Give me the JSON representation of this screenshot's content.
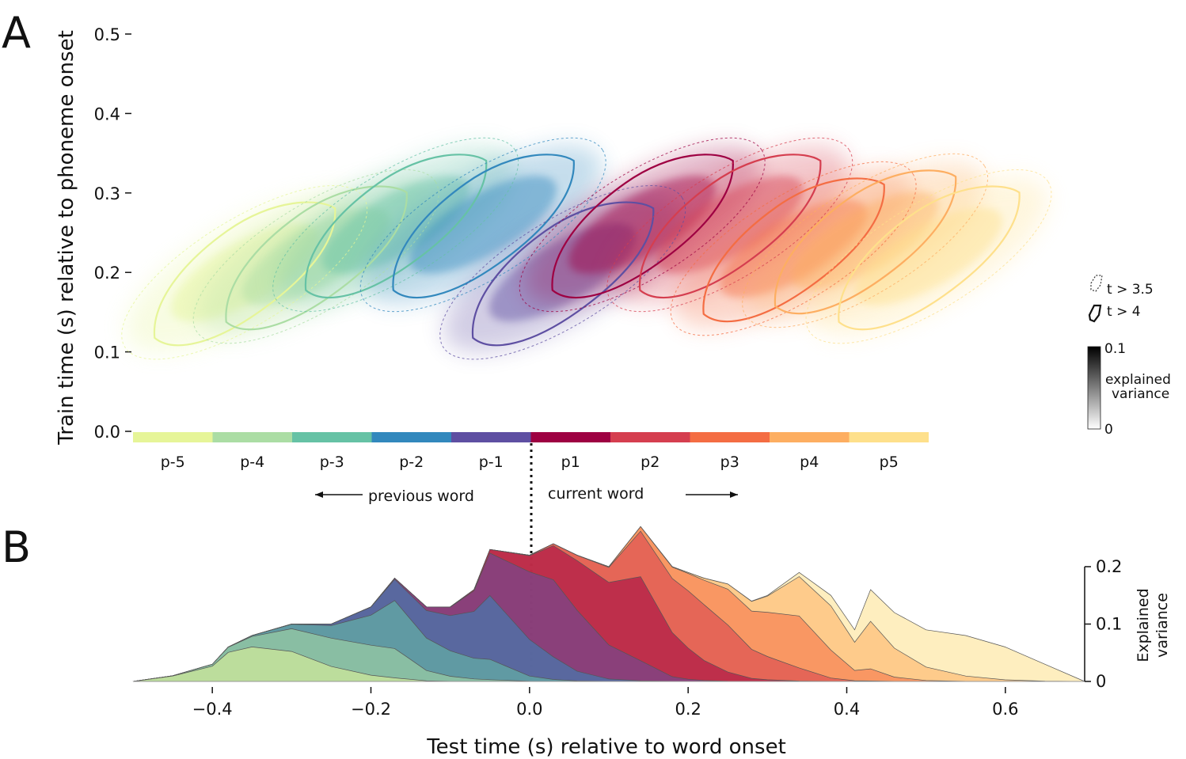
{
  "panel_a": {
    "letter": "A",
    "ylabel": "Train time (s) relative to phoneme onset",
    "yticks": [
      "0.0",
      "0.1",
      "0.2",
      "0.3",
      "0.4",
      "0.5"
    ],
    "phoneme_labels": [
      "p-5",
      "p-4",
      "p-3",
      "p-2",
      "p-1",
      "p1",
      "p2",
      "p3",
      "p4",
      "p5"
    ],
    "phoneme_colors": [
      "#e6f598",
      "#abdda4",
      "#66c2a5",
      "#3288bd",
      "#5e4fa2",
      "#9e0142",
      "#d53e4f",
      "#f46d43",
      "#fdae61",
      "#fee08b"
    ],
    "previous_word": "previous word",
    "current_word": "current word",
    "legend": {
      "dashed": "t > 3.5",
      "solid": "t > 4"
    },
    "colorbar": {
      "max": "0.1",
      "min": "0",
      "label_line1": "explained",
      "label_line2": "variance"
    }
  },
  "panel_b": {
    "letter": "B",
    "xlabel": "Test time (s) relative to word onset",
    "xticks": [
      "−0.4",
      "−0.2",
      "0.0",
      "0.2",
      "0.4",
      "0.6"
    ],
    "yticks": [
      "0",
      "0.1",
      "0.2"
    ],
    "ylabel_line1": "Explained",
    "ylabel_line2": "variance"
  },
  "chart_data": [
    {
      "type": "heatmap",
      "x_label": "",
      "y_label": "Train time (s) relative to phoneme onset",
      "ylim": [
        0,
        0.5
      ],
      "xlim": [
        -0.5,
        0.5
      ],
      "series": [
        {
          "name": "p-5",
          "color": "#e6f598",
          "peak_test_time": -0.36,
          "peak_train_time": 0.2
        },
        {
          "name": "p-4",
          "color": "#abdda4",
          "peak_test_time": -0.27,
          "peak_train_time": 0.22
        },
        {
          "name": "p-3",
          "color": "#66c2a5",
          "peak_test_time": -0.17,
          "peak_train_time": 0.26
        },
        {
          "name": "p-2",
          "color": "#3288bd",
          "peak_test_time": -0.06,
          "peak_train_time": 0.26
        },
        {
          "name": "p-1",
          "color": "#5e4fa2",
          "peak_test_time": 0.04,
          "peak_train_time": 0.2
        },
        {
          "name": "p1",
          "color": "#9e0142",
          "peak_test_time": 0.14,
          "peak_train_time": 0.26
        },
        {
          "name": "p2",
          "color": "#d53e4f",
          "peak_test_time": 0.25,
          "peak_train_time": 0.26
        },
        {
          "name": "p3",
          "color": "#f46d43",
          "peak_test_time": 0.33,
          "peak_train_time": 0.23
        },
        {
          "name": "p4",
          "color": "#fdae61",
          "peak_test_time": 0.42,
          "peak_train_time": 0.24
        },
        {
          "name": "p5",
          "color": "#fee08b",
          "peak_test_time": 0.5,
          "peak_train_time": 0.22
        }
      ],
      "colorbar_range": [
        0,
        0.1
      ]
    },
    {
      "type": "area",
      "xlabel": "Test time (s) relative to word onset",
      "ylabel": "Explained variance",
      "xlim": [
        -0.5,
        0.7
      ],
      "ylim": [
        0,
        0.2
      ],
      "x": [
        -0.5,
        -0.45,
        -0.4,
        -0.38,
        -0.35,
        -0.3,
        -0.25,
        -0.2,
        -0.17,
        -0.13,
        -0.1,
        -0.07,
        -0.05,
        0.0,
        0.03,
        0.06,
        0.1,
        0.14,
        0.18,
        0.2,
        0.22,
        0.25,
        0.28,
        0.3,
        0.34,
        0.38,
        0.41,
        0.43,
        0.46,
        0.5,
        0.55,
        0.6,
        0.65,
        0.7
      ],
      "total": [
        0.0,
        0.01,
        0.03,
        0.06,
        0.08,
        0.1,
        0.1,
        0.13,
        0.18,
        0.13,
        0.13,
        0.16,
        0.23,
        0.22,
        0.24,
        0.22,
        0.2,
        0.27,
        0.2,
        0.19,
        0.18,
        0.17,
        0.14,
        0.15,
        0.19,
        0.15,
        0.09,
        0.16,
        0.12,
        0.09,
        0.08,
        0.06,
        0.03,
        0.0
      ]
    }
  ]
}
